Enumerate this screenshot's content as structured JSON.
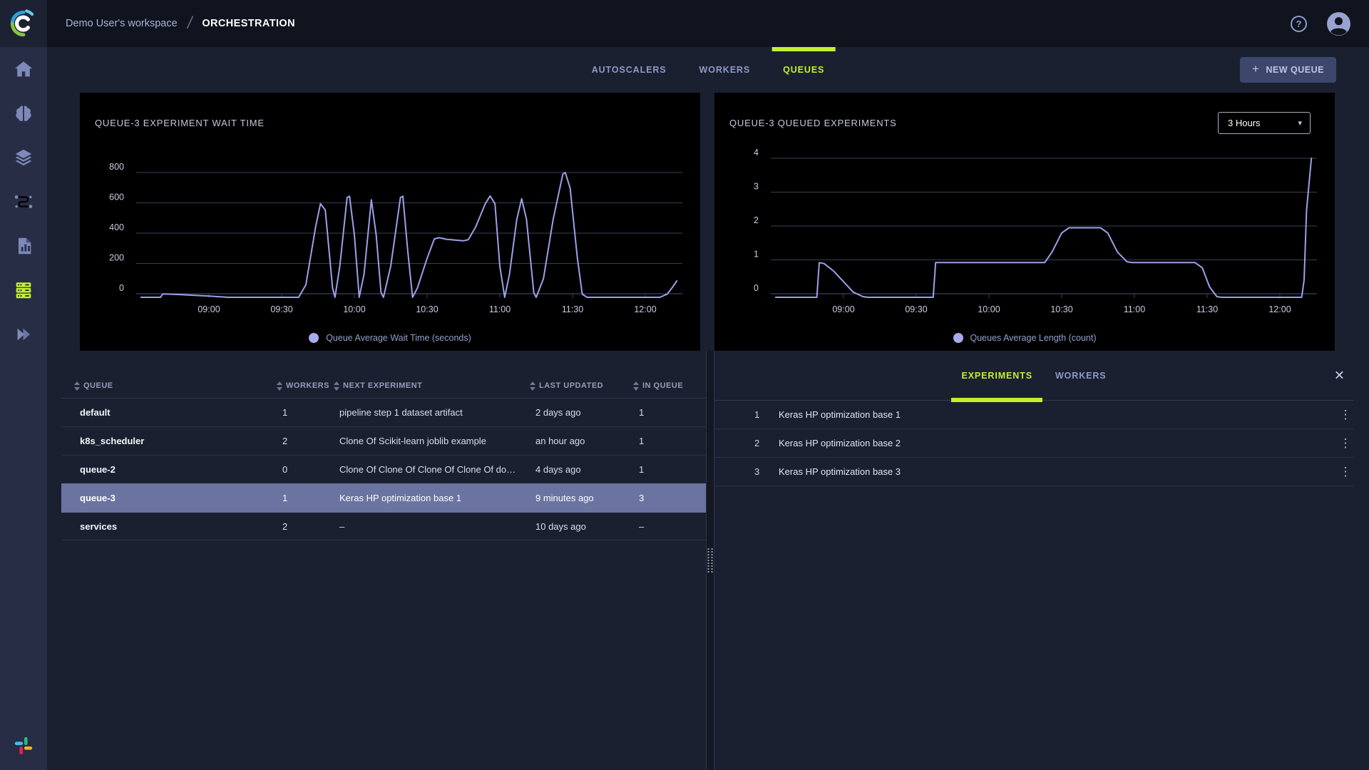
{
  "topbar": {
    "breadcrumb": {
      "workspace": "Demo User's workspace",
      "separator": "/",
      "page": "ORCHESTRATION"
    }
  },
  "icons": {
    "help": "?",
    "plus": "+",
    "caret": "▾",
    "close": "✕",
    "kebab": "⋮"
  },
  "sidebar": {
    "items": [
      {
        "id": "home",
        "icon": "home",
        "active": false
      },
      {
        "id": "projects",
        "icon": "brain",
        "active": false
      },
      {
        "id": "datasets",
        "icon": "layers",
        "active": false
      },
      {
        "id": "pipelines",
        "icon": "pipeline",
        "active": false
      },
      {
        "id": "reports",
        "icon": "report",
        "active": false
      },
      {
        "id": "orchestration",
        "icon": "queues",
        "active": true
      },
      {
        "id": "applications",
        "icon": "double-chevron",
        "active": false
      }
    ],
    "bottom": [
      {
        "id": "slack",
        "icon": "slack"
      }
    ]
  },
  "main_tabs": [
    {
      "label": "AUTOSCALERS",
      "active": false
    },
    {
      "label": "WORKERS",
      "active": false
    },
    {
      "label": "QUEUES",
      "active": true
    }
  ],
  "new_queue_button": {
    "label": "NEW QUEUE"
  },
  "colors": {
    "accent": "#c3f02d",
    "chart_line": "#9ba1e8",
    "selected_row": "#6b74a0",
    "legend_dot": "#a7abec"
  },
  "chart_data": [
    {
      "type": "line",
      "title": "QUEUE-3 EXPERIMENT WAIT TIME",
      "legend": "Queue Average Wait Time (seconds)",
      "ylabel": "seconds",
      "ylim": [
        0,
        800
      ],
      "y_ticks": [
        0,
        200,
        400,
        600,
        800
      ],
      "x_ticks": [
        "09:00",
        "09:30",
        "10:00",
        "10:30",
        "11:00",
        "11:30",
        "12:00"
      ],
      "x_range": [
        "08:32",
        "12:13"
      ],
      "grid": true,
      "legend_position": "bottom-center",
      "points": [
        [
          "08:32",
          0
        ],
        [
          "08:40",
          0
        ],
        [
          "08:41",
          22
        ],
        [
          "08:48",
          18
        ],
        [
          "09:00",
          8
        ],
        [
          "09:08",
          0
        ],
        [
          "09:37",
          0
        ],
        [
          "09:40",
          80
        ],
        [
          "09:44",
          450
        ],
        [
          "09:46",
          600
        ],
        [
          "09:48",
          560
        ],
        [
          "09:51",
          60
        ],
        [
          "09:52",
          0
        ],
        [
          "09:54",
          200
        ],
        [
          "09:57",
          640
        ],
        [
          "09:58",
          648
        ],
        [
          "10:00",
          400
        ],
        [
          "10:02",
          0
        ],
        [
          "10:04",
          150
        ],
        [
          "10:07",
          625
        ],
        [
          "10:09",
          400
        ],
        [
          "10:11",
          30
        ],
        [
          "10:12",
          0
        ],
        [
          "10:15",
          200
        ],
        [
          "10:19",
          640
        ],
        [
          "10:20",
          648
        ],
        [
          "10:22",
          300
        ],
        [
          "10:24",
          0
        ],
        [
          "10:26",
          60
        ],
        [
          "10:30",
          250
        ],
        [
          "10:33",
          375
        ],
        [
          "10:35",
          382
        ],
        [
          "10:38",
          372
        ],
        [
          "10:42",
          366
        ],
        [
          "10:45",
          362
        ],
        [
          "10:47",
          370
        ],
        [
          "10:50",
          450
        ],
        [
          "10:54",
          600
        ],
        [
          "10:56",
          650
        ],
        [
          "10:58",
          600
        ],
        [
          "11:00",
          200
        ],
        [
          "11:02",
          0
        ],
        [
          "11:04",
          150
        ],
        [
          "11:07",
          500
        ],
        [
          "11:09",
          632
        ],
        [
          "11:11",
          500
        ],
        [
          "11:14",
          30
        ],
        [
          "11:15",
          0
        ],
        [
          "11:18",
          120
        ],
        [
          "11:22",
          500
        ],
        [
          "11:26",
          790
        ],
        [
          "11:27",
          800
        ],
        [
          "11:29",
          700
        ],
        [
          "11:32",
          250
        ],
        [
          "11:34",
          20
        ],
        [
          "11:36",
          0
        ],
        [
          "12:06",
          0
        ],
        [
          "12:09",
          20
        ],
        [
          "12:11",
          60
        ],
        [
          "12:13",
          105
        ]
      ]
    },
    {
      "type": "line",
      "title": "QUEUE-3 QUEUED EXPERIMENTS",
      "legend": "Queues Average Length (count)",
      "ylabel": "count",
      "time_selector": "3 Hours",
      "ylim": [
        0,
        4
      ],
      "y_ticks": [
        0,
        1,
        2,
        3,
        4
      ],
      "x_ticks": [
        "09:00",
        "09:30",
        "10:00",
        "10:30",
        "11:00",
        "11:30",
        "12:00"
      ],
      "x_range": [
        "08:32",
        "12:13"
      ],
      "grid": true,
      "legend_position": "bottom-center",
      "points": [
        [
          "08:32",
          0
        ],
        [
          "08:49",
          0
        ],
        [
          "08:50",
          1
        ],
        [
          "08:52",
          0.97
        ],
        [
          "08:56",
          0.75
        ],
        [
          "09:00",
          0.45
        ],
        [
          "09:04",
          0.15
        ],
        [
          "09:08",
          0.02
        ],
        [
          "09:10",
          0
        ],
        [
          "09:37",
          0
        ],
        [
          "09:38",
          1
        ],
        [
          "10:23",
          1
        ],
        [
          "10:26",
          1.3
        ],
        [
          "10:30",
          1.85
        ],
        [
          "10:33",
          2
        ],
        [
          "10:46",
          2
        ],
        [
          "10:49",
          1.85
        ],
        [
          "10:53",
          1.3
        ],
        [
          "10:57",
          1.02
        ],
        [
          "10:59",
          1
        ],
        [
          "11:25",
          1
        ],
        [
          "11:28",
          0.85
        ],
        [
          "11:31",
          0.3
        ],
        [
          "11:34",
          0.02
        ],
        [
          "11:36",
          0
        ],
        [
          "12:09",
          0
        ],
        [
          "12:10",
          0.5
        ],
        [
          "12:11",
          2.5
        ],
        [
          "12:13",
          4
        ]
      ]
    }
  ],
  "queues_table": {
    "headers": [
      "QUEUE",
      "WORKERS",
      "NEXT EXPERIMENT",
      "LAST UPDATED",
      "IN QUEUE"
    ],
    "rows": [
      {
        "queue": "default",
        "workers": "1",
        "next_experiment": "pipeline step 1 dataset artifact",
        "last_updated": "2 days ago",
        "in_queue": "1",
        "selected": false
      },
      {
        "queue": "k8s_scheduler",
        "workers": "2",
        "next_experiment": "Clone Of Scikit-learn joblib example",
        "last_updated": "an hour ago",
        "in_queue": "1",
        "selected": false
      },
      {
        "queue": "queue-2",
        "workers": "0",
        "next_experiment": "Clone Of Clone Of Clone Of Clone Of do…",
        "last_updated": "4 days ago",
        "in_queue": "1",
        "selected": false
      },
      {
        "queue": "queue-3",
        "workers": "1",
        "next_experiment": "Keras HP optimization base 1",
        "last_updated": "9 minutes ago",
        "in_queue": "3",
        "selected": true
      },
      {
        "queue": "services",
        "workers": "2",
        "next_experiment": "–",
        "last_updated": "10 days ago",
        "in_queue": "–",
        "selected": false
      }
    ]
  },
  "detail_panel": {
    "tabs": [
      {
        "label": "EXPERIMENTS",
        "active": true
      },
      {
        "label": "WORKERS",
        "active": false
      }
    ],
    "experiments": [
      {
        "index": "1",
        "name": "Keras HP optimization base 1"
      },
      {
        "index": "2",
        "name": "Keras HP optimization base 2"
      },
      {
        "index": "3",
        "name": "Keras HP optimization base 3"
      }
    ]
  }
}
